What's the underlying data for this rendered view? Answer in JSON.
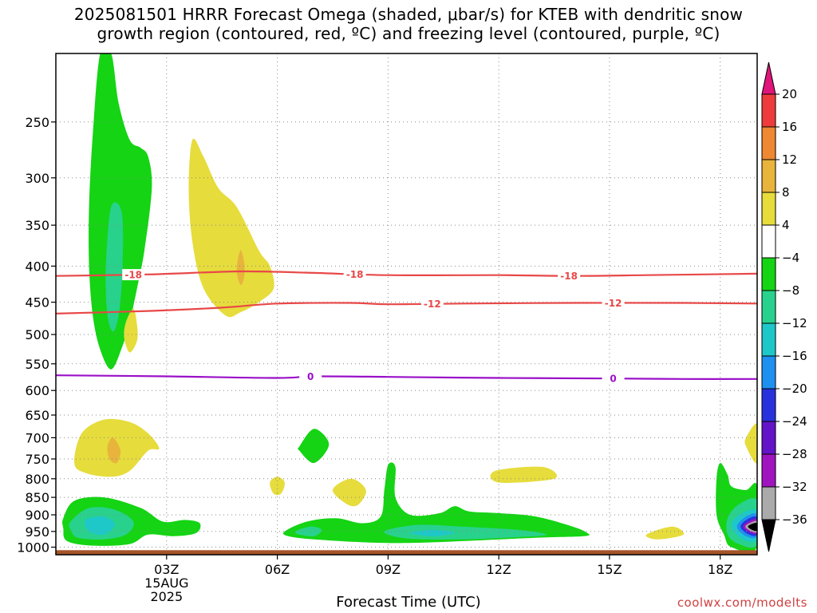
{
  "title": {
    "line1": "2025081501 HRRR Forecast Omega (shaded, μbar/s) for KTEB with dendritic snow",
    "line2": "growth region (contoured, red, ºC) and freezing level (contoured, purple, ºC)"
  },
  "xlabel": "Forecast Time (UTC)",
  "credit": "coolwx.com/modelts",
  "chart_data": {
    "type": "contour",
    "x_unit": "forecast hours from 00Z 15AUG 2025",
    "xlim": [
      0.0,
      19.0
    ],
    "x_ticks": [
      {
        "x": 3,
        "label": "03Z"
      },
      {
        "x": 6,
        "label": "06Z"
      },
      {
        "x": 9,
        "label": "09Z"
      },
      {
        "x": 12,
        "label": "12Z"
      },
      {
        "x": 15,
        "label": "15Z"
      },
      {
        "x": 18,
        "label": "18Z"
      }
    ],
    "date_label": [
      "15AUG",
      "2025"
    ],
    "y_unit": "hPa",
    "y_scale": "log",
    "ylim": [
      1025,
      200
    ],
    "y_ticks": [
      250,
      300,
      350,
      400,
      450,
      500,
      550,
      600,
      650,
      700,
      750,
      800,
      850,
      900,
      950,
      1000
    ],
    "colorbar": {
      "ticks": [
        "20",
        "16",
        "12",
        "8",
        "4",
        "−4",
        "−8",
        "−12",
        "−16",
        "−20",
        "−24",
        "−28",
        "−32",
        "−36"
      ],
      "bins": [
        {
          "range": "20+",
          "color": "#e0147a"
        },
        {
          "range": "16..20",
          "color": "#ee3c3c"
        },
        {
          "range": "12..16",
          "color": "#ee8833"
        },
        {
          "range": "8..12",
          "color": "#e8b43c"
        },
        {
          "range": "4..8",
          "color": "#e6dc3c"
        },
        {
          "range": "-4..4",
          "color": "#ffffff"
        },
        {
          "range": "-8..-4",
          "color": "#14d414"
        },
        {
          "range": "-12..-8",
          "color": "#28d28c"
        },
        {
          "range": "-16..-12",
          "color": "#1ec8c8"
        },
        {
          "range": "-20..-16",
          "color": "#1e90f0"
        },
        {
          "range": "-24..-20",
          "color": "#2832dc"
        },
        {
          "range": "-28..-24",
          "color": "#6414c8"
        },
        {
          "range": "-32..-28",
          "color": "#a014c0"
        },
        {
          "range": "-36..-32",
          "color": "#aaaaaa"
        },
        {
          "range": "<-36",
          "color": "#000000"
        }
      ]
    },
    "isotherms": [
      {
        "label": "-18",
        "color": "#e84848",
        "points": [
          [
            0,
            413
          ],
          [
            2.5,
            411
          ],
          [
            5,
            407
          ],
          [
            7,
            409
          ],
          [
            9,
            412
          ],
          [
            12,
            412
          ],
          [
            14,
            413
          ],
          [
            16,
            412
          ],
          [
            19,
            410
          ]
        ],
        "label_x": [
          2.1,
          8.1,
          13.9
        ]
      },
      {
        "label": "-12",
        "color": "#e84848",
        "points": [
          [
            0,
            467
          ],
          [
            2.5,
            463
          ],
          [
            4.5,
            458
          ],
          [
            6,
            452
          ],
          [
            8,
            451
          ],
          [
            9,
            453
          ],
          [
            11,
            452
          ],
          [
            14,
            451
          ],
          [
            17,
            451
          ],
          [
            19,
            452
          ]
        ],
        "label_x": [
          10.2,
          15.1
        ]
      },
      {
        "label": "0",
        "color": "#9a10c8",
        "points": [
          [
            0,
            571
          ],
          [
            3,
            573
          ],
          [
            6,
            576
          ],
          [
            7,
            573
          ],
          [
            9,
            574
          ],
          [
            12,
            576
          ],
          [
            15,
            577
          ],
          [
            17,
            578
          ],
          [
            19,
            578
          ]
        ],
        "label_x": [
          6.9,
          15.1
        ]
      }
    ],
    "shaded_regions": [
      {
        "bin": "-8..-4",
        "points": [
          [
            1.2,
            200
          ],
          [
            1.5,
            200
          ],
          [
            1.7,
            235
          ],
          [
            2.0,
            265
          ],
          [
            2.3,
            272
          ],
          [
            2.5,
            280
          ],
          [
            2.6,
            310
          ],
          [
            2.4,
            380
          ],
          [
            2.2,
            430
          ],
          [
            2.0,
            480
          ],
          [
            1.8,
            520
          ],
          [
            1.5,
            560
          ],
          [
            1.2,
            525
          ],
          [
            1.0,
            470
          ],
          [
            0.9,
            400
          ],
          [
            0.9,
            330
          ],
          [
            1.0,
            260
          ]
        ]
      },
      {
        "bin": "-12..-8",
        "points": [
          [
            1.35,
            410
          ],
          [
            1.45,
            340
          ],
          [
            1.6,
            325
          ],
          [
            1.8,
            340
          ],
          [
            1.8,
            410
          ],
          [
            1.7,
            470
          ],
          [
            1.55,
            495
          ],
          [
            1.4,
            470
          ]
        ]
      },
      {
        "bin": "4..8",
        "points": [
          [
            3.7,
            265
          ],
          [
            4.0,
            280
          ],
          [
            4.4,
            310
          ],
          [
            4.9,
            330
          ],
          [
            5.5,
            380
          ],
          [
            5.8,
            400
          ],
          [
            5.9,
            430
          ],
          [
            5.5,
            450
          ],
          [
            5.0,
            465
          ],
          [
            4.6,
            470
          ],
          [
            4.0,
            430
          ],
          [
            3.7,
            370
          ],
          [
            3.6,
            310
          ]
        ]
      },
      {
        "bin": "8..12",
        "points": [
          [
            5.0,
            380
          ],
          [
            5.1,
            395
          ],
          [
            5.1,
            415
          ],
          [
            5.0,
            425
          ],
          [
            4.9,
            405
          ]
        ]
      },
      {
        "bin": "4..8",
        "points": [
          [
            2.1,
            460
          ],
          [
            2.2,
            485
          ],
          [
            2.2,
            510
          ],
          [
            2.0,
            530
          ],
          [
            1.85,
            505
          ],
          [
            1.9,
            480
          ]
        ]
      },
      {
        "bin": "4..8",
        "points": [
          [
            0.5,
            760
          ],
          [
            0.7,
            690
          ],
          [
            1.3,
            660
          ],
          [
            2.0,
            665
          ],
          [
            2.5,
            690
          ],
          [
            2.8,
            725
          ],
          [
            2.5,
            730
          ],
          [
            2.0,
            780
          ],
          [
            1.5,
            795
          ],
          [
            0.8,
            785
          ]
        ]
      },
      {
        "bin": "8..12",
        "points": [
          [
            1.55,
            700
          ],
          [
            1.75,
            730
          ],
          [
            1.65,
            760
          ],
          [
            1.45,
            750
          ],
          [
            1.4,
            720
          ]
        ]
      },
      {
        "bin": "-8..-4",
        "points": [
          [
            6.6,
            720
          ],
          [
            7.0,
            680
          ],
          [
            7.4,
            715
          ],
          [
            7.0,
            760
          ],
          [
            6.6,
            730
          ]
        ]
      },
      {
        "bin": "4..8",
        "points": [
          [
            5.8,
            810
          ],
          [
            6.0,
            795
          ],
          [
            6.2,
            810
          ],
          [
            6.1,
            840
          ],
          [
            5.9,
            840
          ]
        ]
      },
      {
        "bin": "4..8",
        "points": [
          [
            7.5,
            830
          ],
          [
            8.0,
            800
          ],
          [
            8.4,
            830
          ],
          [
            8.2,
            870
          ],
          [
            7.9,
            870
          ]
        ]
      },
      {
        "bin": "4..8",
        "points": [
          [
            11.9,
            780
          ],
          [
            13.2,
            770
          ],
          [
            13.5,
            800
          ],
          [
            12.0,
            810
          ]
        ]
      },
      {
        "bin": "4..8",
        "points": [
          [
            16.0,
            960
          ],
          [
            16.7,
            935
          ],
          [
            17.0,
            960
          ],
          [
            16.3,
            975
          ]
        ]
      },
      {
        "bin": "4..8",
        "points": [
          [
            18.7,
            700
          ],
          [
            19.0,
            670
          ],
          [
            19.0,
            760
          ],
          [
            18.7,
            720
          ]
        ]
      },
      {
        "bin": "-8..-4",
        "points": [
          [
            0.2,
            910
          ],
          [
            0.5,
            860
          ],
          [
            1.3,
            850
          ],
          [
            2.3,
            880
          ],
          [
            2.9,
            920
          ],
          [
            3.5,
            915
          ],
          [
            3.9,
            925
          ],
          [
            3.8,
            955
          ],
          [
            3.2,
            965
          ],
          [
            2.5,
            960
          ],
          [
            2.0,
            990
          ],
          [
            1.0,
            995
          ],
          [
            0.3,
            980
          ],
          [
            0.2,
            940
          ]
        ]
      },
      {
        "bin": "-12..-8",
        "points": [
          [
            0.4,
            920
          ],
          [
            0.9,
            880
          ],
          [
            1.6,
            885
          ],
          [
            2.1,
            920
          ],
          [
            1.9,
            960
          ],
          [
            1.3,
            975
          ],
          [
            0.6,
            970
          ],
          [
            0.4,
            945
          ]
        ]
      },
      {
        "bin": "-16..-12",
        "points": [
          [
            0.8,
            915
          ],
          [
            1.3,
            905
          ],
          [
            1.6,
            930
          ],
          [
            1.3,
            960
          ],
          [
            0.9,
            950
          ]
        ]
      },
      {
        "bin": "-8..-4",
        "points": [
          [
            6.2,
            950
          ],
          [
            6.8,
            920
          ],
          [
            7.6,
            910
          ],
          [
            8.3,
            925
          ],
          [
            8.8,
            905
          ],
          [
            8.9,
            830
          ],
          [
            9.0,
            765
          ],
          [
            9.2,
            770
          ],
          [
            9.2,
            850
          ],
          [
            9.6,
            900
          ],
          [
            10.4,
            895
          ],
          [
            10.8,
            875
          ],
          [
            11.2,
            890
          ],
          [
            12.0,
            895
          ],
          [
            13.0,
            905
          ],
          [
            14.0,
            935
          ],
          [
            14.4,
            955
          ],
          [
            14.3,
            965
          ],
          [
            13.0,
            970
          ],
          [
            10.0,
            985
          ],
          [
            8.5,
            985
          ],
          [
            7.0,
            975
          ],
          [
            6.3,
            965
          ]
        ]
      },
      {
        "bin": "-12..-8",
        "points": [
          [
            6.5,
            950
          ],
          [
            6.9,
            935
          ],
          [
            7.2,
            945
          ],
          [
            7.0,
            965
          ],
          [
            6.6,
            960
          ]
        ]
      },
      {
        "bin": "-12..-8",
        "points": [
          [
            8.9,
            950
          ],
          [
            9.8,
            930
          ],
          [
            11.0,
            935
          ],
          [
            12.5,
            945
          ],
          [
            13.3,
            960
          ],
          [
            12.5,
            968
          ],
          [
            11.0,
            975
          ],
          [
            9.5,
            972
          ]
        ]
      },
      {
        "bin": "-16..-12",
        "points": [
          [
            9.6,
            955
          ],
          [
            10.2,
            945
          ],
          [
            10.8,
            955
          ],
          [
            10.2,
            965
          ]
        ]
      },
      {
        "bin": "-8..-4",
        "points": [
          [
            17.9,
            800
          ],
          [
            18.0,
            760
          ],
          [
            18.2,
            790
          ],
          [
            18.3,
            820
          ],
          [
            18.7,
            830
          ],
          [
            19.0,
            820
          ],
          [
            19.0,
            1000
          ],
          [
            18.3,
            1000
          ],
          [
            18.1,
            960
          ],
          [
            17.9,
            900
          ]
        ]
      },
      {
        "bin": "-12..-8",
        "points": [
          [
            18.2,
            910
          ],
          [
            18.5,
            870
          ],
          [
            19.0,
            860
          ],
          [
            19.0,
            990
          ],
          [
            18.5,
            990
          ],
          [
            18.2,
            960
          ]
        ]
      },
      {
        "bin": "-16..-12",
        "points": [
          [
            18.3,
            930
          ],
          [
            18.6,
            895
          ],
          [
            19.0,
            890
          ],
          [
            19.0,
            975
          ],
          [
            18.6,
            975
          ]
        ]
      },
      {
        "bin": "-20..-16",
        "points": [
          [
            18.45,
            935
          ],
          [
            18.7,
            905
          ],
          [
            19.0,
            900
          ],
          [
            19.0,
            965
          ],
          [
            18.7,
            965
          ]
        ]
      },
      {
        "bin": "-24..-20",
        "points": [
          [
            18.55,
            935
          ],
          [
            18.75,
            912
          ],
          [
            19.0,
            908
          ],
          [
            19.0,
            960
          ],
          [
            18.75,
            958
          ]
        ]
      },
      {
        "bin": "-32..-28",
        "points": [
          [
            18.62,
            935
          ],
          [
            18.8,
            918
          ],
          [
            19.0,
            915
          ],
          [
            19.0,
            955
          ],
          [
            18.8,
            953
          ]
        ]
      },
      {
        "bin": "-36..-32",
        "points": [
          [
            18.68,
            935
          ],
          [
            18.85,
            922
          ],
          [
            19.0,
            920
          ],
          [
            19.0,
            951
          ],
          [
            18.85,
            950
          ]
        ]
      },
      {
        "bin": "<-36",
        "points": [
          [
            18.75,
            935
          ],
          [
            18.88,
            926
          ],
          [
            19.0,
            925
          ],
          [
            19.0,
            947
          ],
          [
            18.88,
            946
          ]
        ]
      }
    ],
    "terrain": {
      "color": "#a4542a",
      "surface_hPa": 1010
    }
  }
}
